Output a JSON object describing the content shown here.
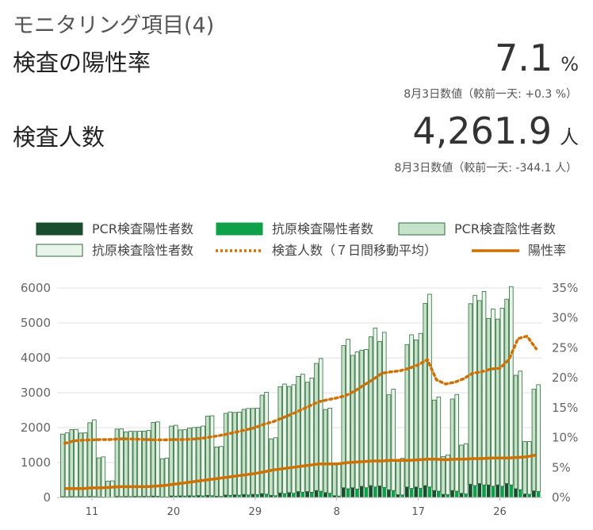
{
  "header": {
    "title": "モニタリング項目(4)"
  },
  "metrics": [
    {
      "label": "検査の陽性率",
      "value": "7.1",
      "unit": "%",
      "sub": "8月3日数値（較前一天: +0.3 %）"
    },
    {
      "label": "検査人数",
      "value": "4,261.9",
      "unit": "人",
      "sub": "8月3日数値（較前一天: -344.1 人）"
    }
  ],
  "colors": {
    "pcr_pos": "#1a4d2e",
    "antigen_pos": "#0ea14a",
    "pcr_neg": "#c6e3c9",
    "antigen_neg": "#e9f5ea",
    "bar_stroke": "#2e6b3a",
    "line": "#d07000"
  },
  "chart_data": {
    "type": "bar",
    "legend": [
      "PCR検査陽性者数",
      "抗原検査陽性者数",
      "PCR検査陰性者数",
      "抗原検査陰性者数",
      "検査人数（７日間移動平均）",
      "陽性率"
    ],
    "legend_placement": "top",
    "x_tick_labels": [
      "11",
      "20",
      "29",
      "8",
      "17",
      "26"
    ],
    "x_tick_positions": [
      3,
      12,
      21,
      30,
      39,
      48
    ],
    "y_left": {
      "min": 0,
      "max": 6000,
      "ticks": [
        0,
        1000,
        2000,
        3000,
        4000,
        5000,
        6000
      ]
    },
    "y_right": {
      "min": 0,
      "max": 35,
      "ticks": [
        "0%",
        "5%",
        "10%",
        "15%",
        "20%",
        "25%",
        "30%",
        "35%"
      ]
    },
    "grid": true,
    "series": [
      {
        "name": "PCR検査陰性者数",
        "stack": "pcr",
        "values": [
          1790,
          1920,
          1820,
          2110,
          1120,
          460,
          1930,
          1850,
          1860,
          1870,
          2110,
          1090,
          2000,
          1890,
          1940,
          1960,
          2270,
          1410,
          2340,
          2360,
          2440,
          2460,
          2820,
          1620,
          3040,
          3040,
          3300,
          3130,
          3640,
          2380,
          880,
          4070,
          3790,
          3900,
          4260,
          4140,
          2720,
          1000,
          4080,
          4210,
          5220,
          2590,
          1080,
          2620,
          1380,
          5170,
          5240,
          4770,
          4750,
          5280,
          3250,
          1500,
          2910
        ]
      },
      {
        "name": "PCR検査陽性者数",
        "stack": "pcr",
        "values": [
          25,
          25,
          25,
          30,
          15,
          6,
          30,
          30,
          32,
          32,
          40,
          18,
          45,
          45,
          50,
          55,
          60,
          35,
          70,
          75,
          85,
          90,
          110,
          60,
          130,
          140,
          170,
          170,
          200,
          140,
          50,
          280,
          280,
          320,
          340,
          330,
          220,
          80,
          300,
          300,
          340,
          200,
          90,
          200,
          120,
          380,
          400,
          360,
          360,
          400,
          250,
          100,
          190
        ]
      },
      {
        "name": "抗原検査陰性者数",
        "stack": "antigen",
        "values": [
          1830,
          1930,
          1830,
          2200,
          1150,
          470,
          1940,
          1870,
          1870,
          1890,
          2130,
          1110,
          2030,
          1900,
          1960,
          2000,
          2290,
          1430,
          2390,
          2380,
          2480,
          2480,
          2920,
          1660,
          3140,
          3110,
          3380,
          3270,
          3800,
          2440,
          920,
          4280,
          3930,
          3960,
          4550,
          4440,
          2900,
          1050,
          4400,
          4440,
          5520,
          2700,
          1140,
          2770,
          1440,
          5450,
          5540,
          5080,
          5100,
          5680,
          3400,
          1510,
          3060
        ]
      },
      {
        "name": "抗原検査陽性者数",
        "stack": "antigen",
        "values": [
          20,
          20,
          20,
          25,
          12,
          5,
          25,
          25,
          28,
          28,
          35,
          15,
          38,
          40,
          42,
          45,
          50,
          30,
          60,
          65,
          70,
          80,
          95,
          50,
          110,
          120,
          150,
          150,
          180,
          120,
          40,
          250,
          240,
          280,
          300,
          290,
          200,
          70,
          260,
          260,
          300,
          180,
          80,
          180,
          100,
          340,
          360,
          320,
          320,
          360,
          220,
          90,
          170
        ]
      },
      {
        "name": "検査人数（７日間移動平均）",
        "axis": "left",
        "style": "dotted",
        "values": [
          1550,
          1620,
          1640,
          1650,
          1660,
          1660,
          1680,
          1680,
          1670,
          1660,
          1650,
          1650,
          1660,
          1660,
          1670,
          1690,
          1730,
          1770,
          1820,
          1880,
          1940,
          2000,
          2100,
          2170,
          2280,
          2380,
          2500,
          2620,
          2740,
          2800,
          2850,
          2920,
          3050,
          3220,
          3380,
          3560,
          3600,
          3630,
          3700,
          3800,
          3950,
          3370,
          3250,
          3300,
          3400,
          3560,
          3600,
          3680,
          3700,
          3950,
          4550,
          4620,
          4260
        ]
      },
      {
        "name": "陽性率",
        "axis": "right",
        "style": "solid",
        "values": [
          1.5,
          1.5,
          1.5,
          1.6,
          1.6,
          1.7,
          1.8,
          1.8,
          1.8,
          1.8,
          1.9,
          2.0,
          2.2,
          2.4,
          2.6,
          2.8,
          3.0,
          3.2,
          3.4,
          3.6,
          3.8,
          4.0,
          4.3,
          4.6,
          4.8,
          5.0,
          5.2,
          5.4,
          5.6,
          5.6,
          5.6,
          5.8,
          5.9,
          6.0,
          6.1,
          6.1,
          6.2,
          6.2,
          6.2,
          6.3,
          6.4,
          6.4,
          6.3,
          6.4,
          6.4,
          6.5,
          6.5,
          6.6,
          6.6,
          6.6,
          6.7,
          6.8,
          7.1
        ]
      }
    ]
  }
}
